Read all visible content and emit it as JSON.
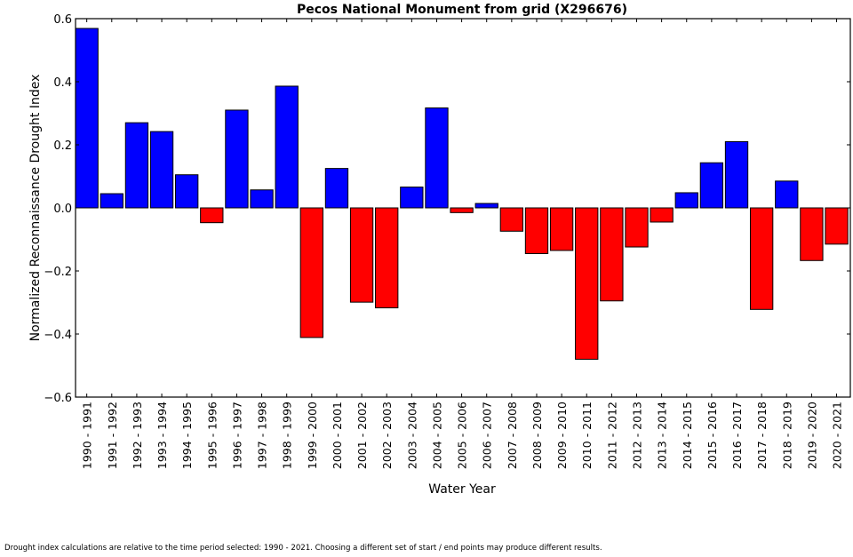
{
  "chart_data": {
    "type": "bar",
    "title": "Pecos National Monument from grid (X296676)",
    "xlabel": "Water Year",
    "ylabel": "Normalized Reconnaissance Drought Index",
    "ylim": [
      -0.6,
      0.6
    ],
    "yticks": [
      "0.6",
      "0.4",
      "0.2",
      "0.0",
      "−0.2",
      "−0.4",
      "−0.6"
    ],
    "ytick_values": [
      0.6,
      0.4,
      0.2,
      0.0,
      -0.2,
      -0.4,
      -0.6
    ],
    "grid": false,
    "legend": "none",
    "colors": {
      "positive": "#0000ff",
      "negative": "#ff0000",
      "edge": "#000000"
    },
    "categories": [
      "1990 - 1991",
      "1991 - 1992",
      "1992 - 1993",
      "1993 - 1994",
      "1994 - 1995",
      "1995 - 1996",
      "1996 - 1997",
      "1997 - 1998",
      "1998 - 1999",
      "1999 - 2000",
      "2000 - 2001",
      "2001 - 2002",
      "2002 - 2003",
      "2003 - 2004",
      "2004 - 2005",
      "2005 - 2006",
      "2006 - 2007",
      "2007 - 2008",
      "2008 - 2009",
      "2009 - 2010",
      "2010 - 2011",
      "2011 - 2012",
      "2012 - 2013",
      "2013 - 2014",
      "2014 - 2015",
      "2015 - 2016",
      "2016 - 2017",
      "2017 - 2018",
      "2018 - 2019",
      "2019 - 2020",
      "2020 - 2021"
    ],
    "values": [
      0.569,
      0.045,
      0.27,
      0.242,
      0.105,
      -0.047,
      0.31,
      0.057,
      0.386,
      -0.411,
      0.125,
      -0.299,
      -0.317,
      0.066,
      0.317,
      -0.015,
      0.014,
      -0.074,
      -0.145,
      -0.135,
      -0.48,
      -0.295,
      -0.124,
      -0.045,
      0.048,
      0.143,
      0.21,
      -0.322,
      0.085,
      -0.167,
      -0.115
    ]
  },
  "footer": "Drought index calculations are relative to the time period selected: 1990 - 2021. Choosing a different set of start / end points may produce different results."
}
